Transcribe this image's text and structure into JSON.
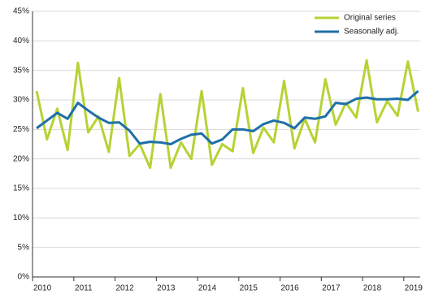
{
  "chart_data": {
    "type": "line",
    "x": [
      2010,
      2010.25,
      2010.5,
      2010.75,
      2011,
      2011.25,
      2011.5,
      2011.75,
      2012,
      2012.25,
      2012.5,
      2012.75,
      2013,
      2013.25,
      2013.5,
      2013.75,
      2014,
      2014.25,
      2014.5,
      2014.75,
      2015,
      2015.25,
      2015.5,
      2015.75,
      2016,
      2016.25,
      2016.5,
      2016.75,
      2017,
      2017.25,
      2017.5,
      2017.75,
      2018,
      2018.25,
      2018.5,
      2018.75,
      2019,
      2019.25
    ],
    "series": [
      {
        "name": "Original series",
        "color": "#b5d334",
        "values": [
          31.5,
          23.3,
          28.5,
          21.5,
          36.3,
          24.5,
          27.2,
          21.2,
          33.7,
          20.5,
          22.5,
          18.5,
          31,
          18.5,
          22.8,
          20,
          31.5,
          19,
          22.5,
          21.3,
          32,
          21,
          25.3,
          22.8,
          33.2,
          21.8,
          26.8,
          22.8,
          33.5,
          25.8,
          29.5,
          27,
          36.7,
          26.2,
          29.8,
          27.3,
          36.5,
          28
        ]
      },
      {
        "name": "Seasonally adj.",
        "color": "#1f6fa8",
        "values": [
          25.2,
          26.5,
          27.8,
          26.8,
          29.5,
          28.2,
          27,
          26.1,
          26.2,
          24.8,
          22.6,
          22.9,
          22.8,
          22.5,
          23.4,
          24.1,
          24.3,
          22.6,
          23.3,
          25,
          25,
          24.7,
          25.9,
          26.5,
          26.1,
          25.2,
          27,
          26.8,
          27.2,
          29.5,
          29.3,
          30.2,
          30.4,
          30.1,
          30.1,
          30.2,
          30,
          31.5
        ]
      }
    ],
    "xlim": [
      2009.9,
      2019.3
    ],
    "xticks": [
      2010,
      2011,
      2012,
      2013,
      2014,
      2015,
      2016,
      2017,
      2018,
      2019
    ],
    "ylim": [
      0,
      45
    ],
    "yticks": [
      {
        "value": 0,
        "label": "0%"
      },
      {
        "value": 5,
        "label": "5%"
      },
      {
        "value": 10,
        "label": "10%"
      },
      {
        "value": 15,
        "label": "15%"
      },
      {
        "value": 20,
        "label": "20%"
      },
      {
        "value": 25,
        "label": "25%"
      },
      {
        "value": 30,
        "label": "30%"
      },
      {
        "value": 35,
        "label": "35%"
      },
      {
        "value": 40,
        "label": "40%"
      },
      {
        "value": 45,
        "label": "45%"
      }
    ],
    "grid": true,
    "legend": "top-right"
  }
}
